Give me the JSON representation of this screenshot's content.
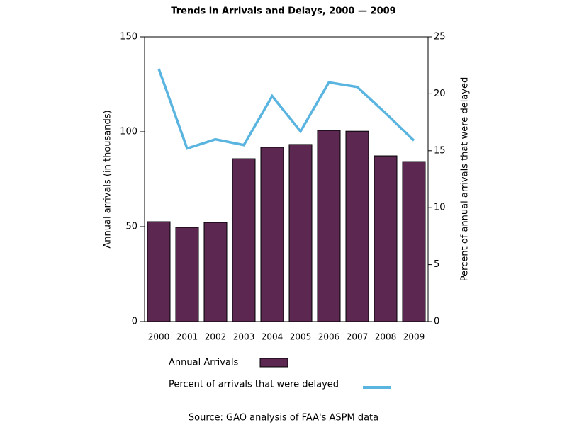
{
  "chart_data": {
    "type": "bar",
    "title": "Trends in Arrivals and Delays, 2000 — 2009",
    "ylabel": "Annual arrivals (in thousands)",
    "y2label": "Percent of annual arrivals that were delayed",
    "note": "Source: GAO analysis of FAA's ASPM data",
    "categories": [
      "2000",
      "2001",
      "2002",
      "2003",
      "2004",
      "2005",
      "2006",
      "2007",
      "2008",
      "2009"
    ],
    "series": [
      {
        "name": "Annual Arrivals",
        "type": "bar",
        "color": "#5c2750",
        "values": [
          52.6,
          49.6,
          52.2,
          85.8,
          91.8,
          93.3,
          100.7,
          100.3,
          87.3,
          84.3
        ]
      },
      {
        "name": "Percent of arrivals that were delayed",
        "type": "line",
        "axis": "y2",
        "color": "#5ab4e0",
        "values": [
          22.2,
          15.2,
          16.0,
          15.5,
          19.8,
          16.7,
          21.0,
          20.6,
          18.3,
          15.9
        ]
      }
    ],
    "ylim": [
      0,
      150
    ],
    "yticks": [
      0,
      50,
      100,
      150
    ],
    "y2lim": [
      0,
      25
    ],
    "y2ticks": [
      0,
      5,
      10,
      15,
      20,
      25
    ],
    "grid": false
  }
}
